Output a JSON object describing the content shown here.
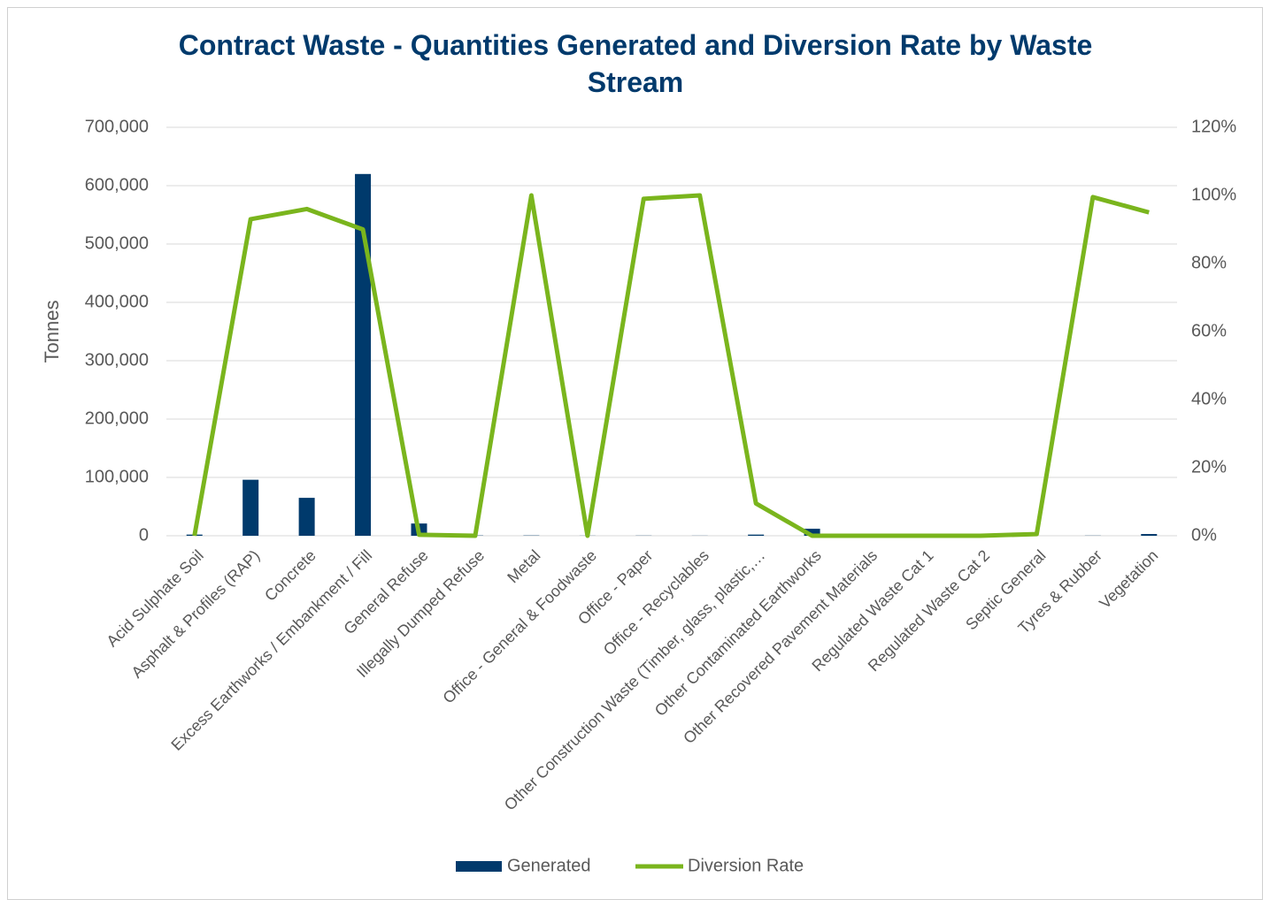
{
  "chart_data": {
    "type": "bar-line",
    "title": "Contract Waste - Quantities Generated and Diversion Rate by Waste Stream",
    "ylabel": "Tonnes",
    "categories": [
      "Acid Sulphate Soil",
      "Asphalt & Profiles (RAP)",
      "Concrete",
      "Excess Earthworks / Embankment / Fill",
      "General Refuse",
      "Illegally Dumped Refuse",
      "Metal",
      "Office - General & Foodwaste",
      "Office - Paper",
      "Office - Recyclables",
      "Other Construction Waste (Timber, glass, plastic,…",
      "Other Contaminated Earthworks",
      "Other Recovered Pavement Materials",
      "Regulated Waste Cat 1",
      "Regulated Waste Cat 2",
      "Septic General",
      "Tyres & Rubber",
      "Vegetation"
    ],
    "series": [
      {
        "name": "Generated",
        "type": "bar",
        "color": "#003a6c",
        "values": [
          2000,
          96000,
          65000,
          620000,
          21000,
          500,
          500,
          200,
          300,
          200,
          2000,
          12000,
          0,
          0,
          0,
          0,
          300,
          3000
        ]
      },
      {
        "name": "Diversion Rate",
        "type": "line",
        "axis": "y2",
        "color": "#7ab51d",
        "values": [
          0,
          93,
          96,
          90,
          0.3,
          0,
          100,
          0,
          99,
          100,
          9.5,
          0,
          0,
          0,
          0,
          0.5,
          99.5,
          95
        ]
      }
    ],
    "ylim": [
      0,
      700000
    ],
    "yticks": [
      0,
      {
        "value": 100000,
        "label": "100,000"
      },
      {
        "value": 200000,
        "label": "200,000"
      },
      {
        "value": 300000,
        "label": "300,000"
      },
      {
        "value": 400000,
        "label": "400,000"
      },
      {
        "value": 500000,
        "label": "500,000"
      },
      {
        "value": 600000,
        "label": "600,000"
      },
      {
        "value": 700000,
        "label": "700,000"
      }
    ],
    "y2lim": [
      0,
      120
    ],
    "y2ticks": [
      {
        "value": 0,
        "label": "0%"
      },
      {
        "value": 20,
        "label": "20%"
      },
      {
        "value": 40,
        "label": "40%"
      },
      {
        "value": 60,
        "label": "60%"
      },
      {
        "value": 80,
        "label": "80%"
      },
      {
        "value": 100,
        "label": "100%"
      },
      {
        "value": 120,
        "label": "120%"
      }
    ],
    "grid": true,
    "legend": "bottom"
  }
}
